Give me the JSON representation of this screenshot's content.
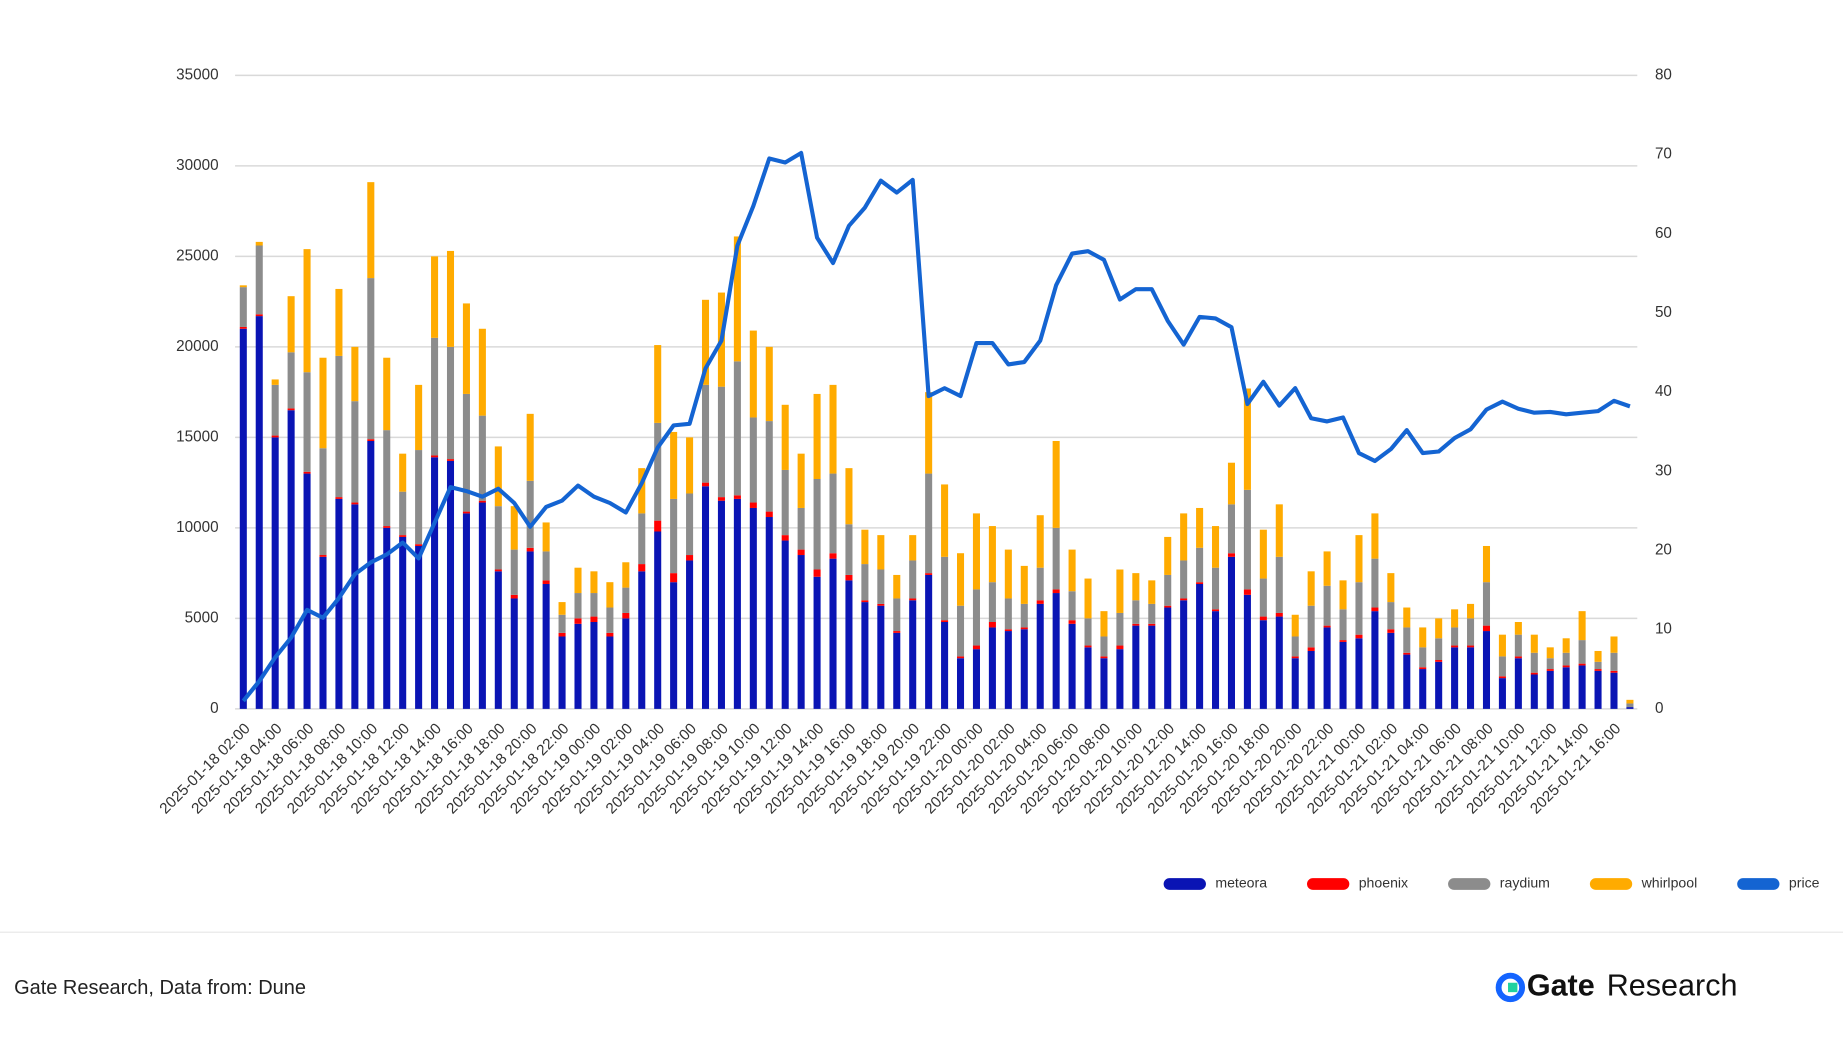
{
  "chart_data": {
    "type": "bar",
    "stacked": true,
    "categories": [
      "2025-01-18 02:00",
      null,
      "2025-01-18 04:00",
      null,
      "2025-01-18 06:00",
      null,
      "2025-01-18 08:00",
      null,
      "2025-01-18 10:00",
      null,
      "2025-01-18 12:00",
      null,
      "2025-01-18 14:00",
      null,
      "2025-01-18 16:00",
      null,
      "2025-01-18 18:00",
      null,
      "2025-01-18 20:00",
      null,
      "2025-01-18 22:00",
      null,
      "2025-01-19 00:00",
      null,
      "2025-01-19 02:00",
      null,
      "2025-01-19 04:00",
      null,
      "2025-01-19 06:00",
      null,
      "2025-01-19 08:00",
      null,
      "2025-01-19 10:00",
      null,
      "2025-01-19 12:00",
      null,
      "2025-01-19 14:00",
      null,
      "2025-01-19 16:00",
      null,
      "2025-01-19 18:00",
      null,
      "2025-01-19 20:00",
      null,
      "2025-01-19 22:00",
      null,
      "2025-01-20 00:00",
      null,
      "2025-01-20 02:00",
      null,
      "2025-01-20 04:00",
      null,
      "2025-01-20 06:00",
      null,
      "2025-01-20 08:00",
      null,
      "2025-01-20 10:00",
      null,
      "2025-01-20 12:00",
      null,
      "2025-01-20 14:00",
      null,
      "2025-01-20 16:00",
      null,
      "2025-01-20 18:00",
      null,
      "2025-01-20 20:00",
      null,
      "2025-01-20 22:00",
      null,
      "2025-01-21 00:00",
      null,
      "2025-01-21 02:00",
      null,
      "2025-01-21 04:00",
      null,
      "2025-01-21 06:00",
      null,
      "2025-01-21 08:00",
      null,
      "2025-01-21 10:00",
      null,
      "2025-01-21 12:00",
      null,
      "2025-01-21 14:00",
      null,
      "2025-01-21 16:00",
      null
    ],
    "series": [
      {
        "name": "meteora",
        "color": "#0a14b4",
        "values": [
          21000,
          21700,
          15000,
          16500,
          13000,
          8400,
          11600,
          11300,
          14800,
          10000,
          9500,
          9000,
          13900,
          13700,
          10800,
          11400,
          7600,
          6100,
          8700,
          6900,
          4000,
          4700,
          4800,
          4000,
          5000,
          7600,
          9800,
          7000,
          8200,
          12300,
          11500,
          11600,
          11100,
          10600,
          9300,
          8500,
          7300,
          8300,
          7100,
          5900,
          5700,
          4200,
          6000,
          7400,
          4800,
          2800,
          3300,
          4500,
          4300,
          4400,
          5800,
          6400,
          4700,
          3400,
          2800,
          3300,
          4600,
          4600,
          5600,
          6000,
          6900,
          5400,
          8400,
          6300,
          4900,
          5100,
          2800,
          3200,
          4500,
          3700,
          3900,
          5400,
          4200,
          3000,
          2200,
          2600,
          3400,
          3400,
          4300,
          1700,
          2800,
          1900,
          2100,
          2300,
          2400,
          2100,
          2000,
          100
        ]
      },
      {
        "name": "phoenix",
        "color": "#ff0000",
        "values": [
          100,
          100,
          100,
          100,
          100,
          100,
          100,
          100,
          100,
          100,
          100,
          100,
          100,
          100,
          100,
          100,
          100,
          200,
          200,
          200,
          200,
          300,
          300,
          200,
          300,
          400,
          600,
          500,
          300,
          200,
          200,
          200,
          300,
          300,
          300,
          300,
          400,
          300,
          300,
          100,
          100,
          100,
          100,
          100,
          100,
          100,
          200,
          300,
          100,
          100,
          200,
          200,
          200,
          100,
          100,
          200,
          100,
          100,
          100,
          100,
          100,
          100,
          200,
          300,
          200,
          200,
          100,
          200,
          100,
          100,
          200,
          200,
          200,
          100,
          100,
          100,
          100,
          100,
          300,
          100,
          100,
          100,
          100,
          100,
          100,
          100,
          100,
          0
        ]
      },
      {
        "name": "raydium",
        "color": "#8c8c8c",
        "values": [
          2200,
          3800,
          2800,
          3100,
          5500,
          5900,
          7800,
          5600,
          8900,
          5300,
          2400,
          5200,
          6500,
          6200,
          6500,
          4700,
          3500,
          2500,
          3700,
          1600,
          1000,
          1400,
          1300,
          1400,
          1400,
          2800,
          5400,
          4100,
          3400,
          5400,
          6100,
          7400,
          4700,
          5000,
          3600,
          2300,
          5000,
          4400,
          2800,
          2000,
          1900,
          1800,
          2100,
          5500,
          3500,
          2800,
          3100,
          2200,
          1700,
          1300,
          1800,
          3400,
          1600,
          1500,
          1100,
          1800,
          1300,
          1100,
          1700,
          2100,
          1900,
          2300,
          2700,
          5500,
          2100,
          3100,
          1100,
          2300,
          2200,
          1700,
          2900,
          2700,
          1500,
          1400,
          1100,
          1200,
          1000,
          1500,
          2400,
          1100,
          1200,
          1100,
          600,
          700,
          1300,
          400,
          1000,
          200
        ]
      },
      {
        "name": "whirlpool",
        "color": "#ffab00",
        "values": [
          100,
          200,
          300,
          3100,
          6800,
          5000,
          3700,
          3000,
          5300,
          4000,
          2100,
          3600,
          4500,
          5300,
          5000,
          4800,
          3300,
          2400,
          3700,
          1600,
          700,
          1400,
          1200,
          1400,
          1400,
          2500,
          4300,
          3700,
          3100,
          4700,
          5200,
          6900,
          4800,
          4100,
          3600,
          3000,
          4700,
          4900,
          3100,
          1900,
          1900,
          1300,
          1400,
          4500,
          4000,
          2900,
          4200,
          3100,
          2700,
          2100,
          2900,
          4800,
          2300,
          2200,
          1400,
          2400,
          1500,
          1300,
          2100,
          2600,
          2200,
          2300,
          2300,
          5600,
          2700,
          2900,
          1200,
          1900,
          1900,
          1600,
          2600,
          2500,
          1600,
          1100,
          1100,
          1100,
          1000,
          800,
          2000,
          1200,
          700,
          1000,
          600,
          800,
          1600,
          600,
          900,
          200
        ]
      },
      {
        "name": "price",
        "color": "#1464d2",
        "type": "line",
        "axis": "y2",
        "values": [
          1,
          3.5,
          6.5,
          9,
          12.5,
          11.5,
          14,
          17,
          18.5,
          19.5,
          21,
          19,
          23.5,
          28,
          27.5,
          26.8,
          27.8,
          26,
          23,
          25.5,
          26.3,
          28.2,
          26.8,
          26,
          24.8,
          28.5,
          33,
          35.8,
          36,
          43,
          46.5,
          58.5,
          63.5,
          69.5,
          69,
          70.2,
          59.5,
          56.3,
          61,
          63.3,
          66.7,
          65.2,
          66.8,
          39.5,
          40.5,
          39.5,
          46.2,
          46.2,
          43.5,
          43.8,
          46.5,
          53.5,
          57.5,
          57.8,
          56.7,
          51.7,
          53,
          53,
          49,
          46,
          49.5,
          49.3,
          48.2,
          38.5,
          41.3,
          38.3,
          40.5,
          36.7,
          36.3,
          36.8,
          32.3,
          31.3,
          32.8,
          35.2,
          32.3,
          32.5,
          34.2,
          35.3,
          37.8,
          38.8,
          37.9,
          37.4,
          37.5,
          37.2,
          37.4,
          37.6,
          38.9,
          38.2
        ]
      }
    ],
    "ylim": [
      0,
      35000
    ],
    "yticks": [
      0,
      5000,
      10000,
      15000,
      20000,
      25000,
      30000,
      35000
    ],
    "y2lim": [
      0,
      80
    ],
    "y2ticks": [
      0,
      10,
      20,
      30,
      40,
      50,
      60,
      70,
      80
    ],
    "grid": true,
    "legend": "bottom-right"
  },
  "footer": {
    "source": "Gate Research, Data from: Dune",
    "logo_brand": "Gate",
    "logo_text": "Research"
  }
}
